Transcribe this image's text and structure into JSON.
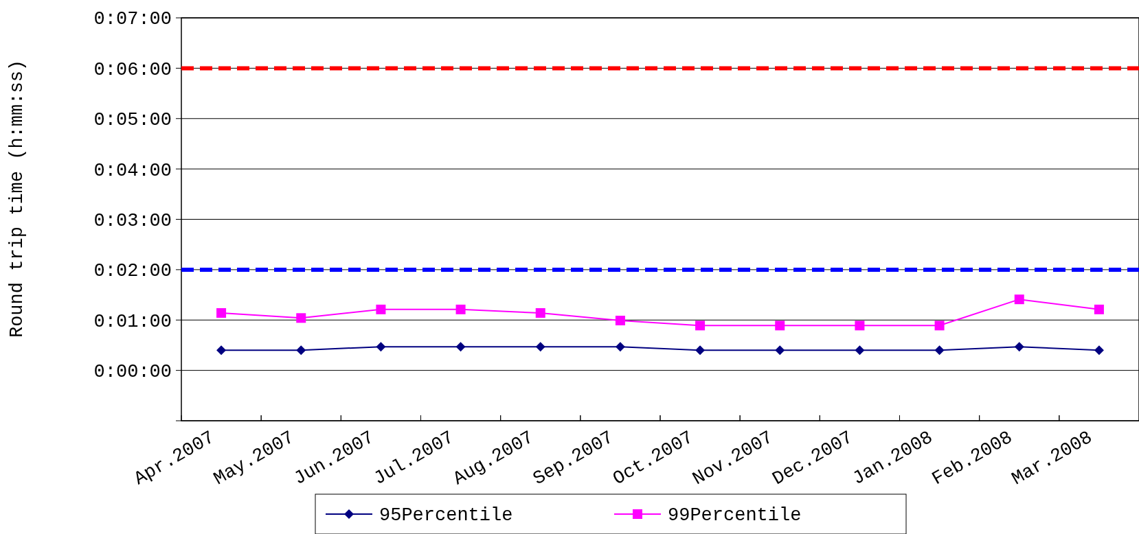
{
  "chart_data": {
    "type": "line",
    "ylabel": "Round trip time (h:mm:ss)",
    "categories": [
      "Apr.2007",
      "May.2007",
      "Jun.2007",
      "Jul.2007",
      "Aug.2007",
      "Sep.2007",
      "Oct.2007",
      "Nov.2007",
      "Dec.2007",
      "Jan.2008",
      "Feb.2008",
      "Mar.2008"
    ],
    "series": [
      {
        "name": "95Percentile",
        "color": "#000080",
        "marker": "diamond",
        "values": [
          0.4,
          0.4,
          0.47,
          0.47,
          0.47,
          0.47,
          0.4,
          0.4,
          0.4,
          0.4,
          0.47,
          0.4
        ]
      },
      {
        "name": "99Percentile",
        "color": "#ff00ff",
        "marker": "square",
        "values": [
          1.14,
          1.04,
          1.21,
          1.21,
          1.14,
          0.99,
          0.89,
          0.89,
          0.89,
          0.89,
          1.41,
          1.21
        ]
      }
    ],
    "ylim": [
      -1,
      7
    ],
    "yticks": [
      {
        "value": -1,
        "label": null
      },
      {
        "value": 0,
        "label": "0:00:00"
      },
      {
        "value": 1,
        "label": "0:01:00"
      },
      {
        "value": 2,
        "label": "0:02:00"
      },
      {
        "value": 3,
        "label": "0:03:00"
      },
      {
        "value": 4,
        "label": "0:04:00"
      },
      {
        "value": 5,
        "label": "0:05:00"
      },
      {
        "value": 6,
        "label": "0:06:00"
      },
      {
        "value": 7,
        "label": "0:07:00"
      }
    ],
    "ref_lines": [
      {
        "axis": "y",
        "value": 6,
        "color": "#ff0000",
        "line_style": "dashed"
      },
      {
        "axis": "y",
        "value": 2,
        "color": "#0000ff",
        "line_style": "dashed"
      }
    ],
    "grid": "y",
    "legend": "bottom",
    "line_style": "solid"
  }
}
